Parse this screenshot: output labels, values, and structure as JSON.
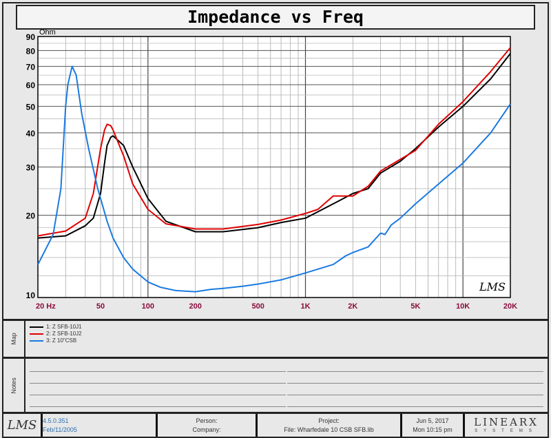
{
  "title": "Impedance vs Freq",
  "chart_data": {
    "type": "line",
    "title": "Impedance vs Freq",
    "ylabel": "Ohm",
    "xlabel": "",
    "xscale": "log",
    "yscale": "log",
    "xlim": [
      20,
      20000
    ],
    "ylim": [
      10,
      90
    ],
    "x_ticks": [
      {
        "v": 20,
        "label": "20 Hz"
      },
      {
        "v": 50,
        "label": "50"
      },
      {
        "v": 100,
        "label": "100"
      },
      {
        "v": 200,
        "label": "200"
      },
      {
        "v": 500,
        "label": "500"
      },
      {
        "v": 1000,
        "label": "1K"
      },
      {
        "v": 2000,
        "label": "2K"
      },
      {
        "v": 5000,
        "label": "5K"
      },
      {
        "v": 10000,
        "label": "10K"
      },
      {
        "v": 20000,
        "label": "20K"
      }
    ],
    "y_ticks": [
      {
        "v": 10,
        "label": "10"
      },
      {
        "v": 20,
        "label": "20"
      },
      {
        "v": 30,
        "label": "30"
      },
      {
        "v": 40,
        "label": "40"
      },
      {
        "v": 50,
        "label": "50"
      },
      {
        "v": 60,
        "label": "60"
      },
      {
        "v": 70,
        "label": "70"
      },
      {
        "v": 80,
        "label": "80"
      },
      {
        "v": 90,
        "label": "90"
      }
    ],
    "grid": true,
    "series": [
      {
        "name": "1: Z  SFB-10J1",
        "color": "#000000",
        "x": [
          20,
          30,
          40,
          45,
          50,
          53,
          55,
          58,
          60,
          70,
          80,
          100,
          130,
          200,
          300,
          500,
          700,
          1000,
          1500,
          2000,
          2500,
          3000,
          4000,
          5000,
          7000,
          10000,
          15000,
          20000
        ],
        "y": [
          16.5,
          16.8,
          18.3,
          19.5,
          24,
          31,
          36,
          38.5,
          39,
          36,
          30,
          23,
          19,
          17.4,
          17.4,
          18,
          18.8,
          19.5,
          22,
          24,
          25,
          28.5,
          31.5,
          35,
          42,
          50,
          63,
          78
        ]
      },
      {
        "name": "2: Z  SFB-10J2",
        "color": "#e00000",
        "x": [
          20,
          30,
          40,
          45,
          50,
          53,
          55,
          58,
          60,
          70,
          80,
          100,
          130,
          200,
          300,
          500,
          700,
          1000,
          1200,
          1500,
          2000,
          2500,
          3000,
          4000,
          5000,
          7000,
          10000,
          15000,
          20000
        ],
        "y": [
          16.8,
          17.5,
          19.5,
          24,
          35,
          41,
          43,
          42.5,
          41,
          33,
          26,
          21,
          18.6,
          17.8,
          17.8,
          18.5,
          19.2,
          20.3,
          21,
          23.5,
          23.5,
          25.5,
          29,
          32,
          34.5,
          43,
          52,
          67,
          82
        ]
      },
      {
        "name": "3: Z  10\"CSB",
        "color": "#1a7ae0",
        "x": [
          20,
          25,
          28,
          30,
          31,
          33,
          35,
          38,
          42,
          48,
          55,
          60,
          70,
          80,
          100,
          120,
          150,
          200,
          250,
          300,
          400,
          500,
          700,
          1000,
          1500,
          1800,
          2000,
          2500,
          3000,
          3200,
          3500,
          4000,
          5000,
          7000,
          10000,
          15000,
          20000
        ],
        "y": [
          13.2,
          17,
          25,
          50,
          60,
          70,
          65,
          47,
          35,
          25,
          19,
          16.5,
          14,
          12.7,
          11.4,
          10.9,
          10.6,
          10.5,
          10.7,
          10.8,
          11,
          11.2,
          11.6,
          12.3,
          13.2,
          14.2,
          14.6,
          15.3,
          17.2,
          17,
          18.4,
          19.5,
          22,
          26,
          31,
          40,
          51
        ]
      }
    ],
    "legend": "bottom-panel"
  },
  "map_label": "Map",
  "notes_label": "Notes",
  "watermark": "LMS",
  "footer": {
    "version": "4.5.0.351",
    "build_date": "Feb/11/2005",
    "person": "Person:",
    "company": "Company:",
    "project": "Project:",
    "file": "File: Wharfedale 10  CSB SFB.lib",
    "date": "Jun  5, 2017",
    "time": "Mon 10:15 pm",
    "brand": "LINEARX",
    "brand_sub": "SYSTEMS"
  }
}
